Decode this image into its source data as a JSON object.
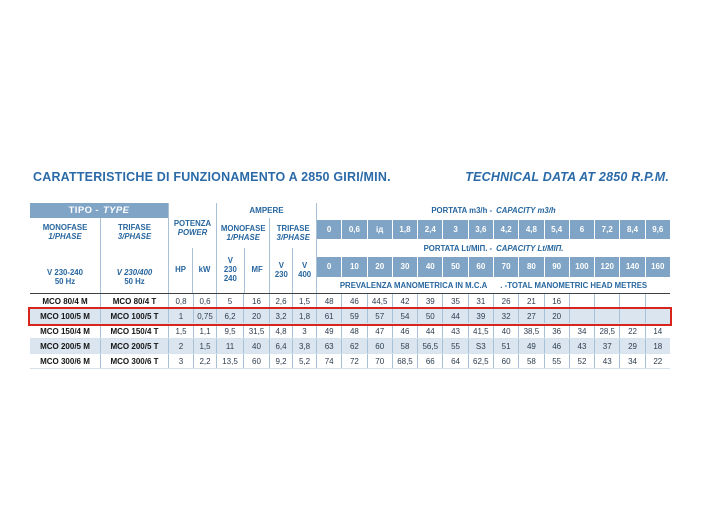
{
  "titles": {
    "left": "CARATTERISTICHE DI FUNZIONAMENTO A 2850 GIRI/MIN.",
    "right": "TECHNICAL DATA AT 2850 R.P.M."
  },
  "colors": {
    "band_blue": "#7FA4C5",
    "row_shade": "#DAE5F0",
    "header_text": "#27669E",
    "title_text": "#2A6AA8",
    "highlight_red": "#D7241D"
  },
  "table": {
    "tipo": {
      "it": "TIPO -",
      "en": "TYPE"
    },
    "monofase_col": {
      "line1": "MONOFASE",
      "line2": "1/PHASE",
      "volt": "V 230-240",
      "hz": "50 Hz"
    },
    "trifase_col": {
      "line1": "TRIFASE",
      "line2": "3/PHASE",
      "volt": "V 230/400",
      "hz": "50 Hz"
    },
    "potenza": {
      "line1": "POTENZA",
      "line2": "POWER",
      "hp": "HP",
      "kw": "kW"
    },
    "ampere": {
      "label": "AMPERE",
      "monofase_line1": "MONOFASE",
      "monofase_line2": "1/PHASE",
      "trifase_line1": "TRIFASE",
      "trifase_line2": "3/PHASE",
      "v230_240": [
        "V",
        "230",
        "240"
      ],
      "mf": "MF",
      "v230": [
        "V",
        "230"
      ],
      "v400": [
        "V",
        "400"
      ]
    },
    "capacity_m3h": {
      "label_it": "PORTATA m3/h -",
      "label_en": "CAPACITY m3/h",
      "values": [
        "0",
        "0,6",
        "ід",
        "1,8",
        "2,4",
        "3",
        "3,6",
        "4,2",
        "4,8",
        "5,4",
        "6",
        "7,2",
        "8,4",
        "9,6"
      ]
    },
    "capacity_ltmin": {
      "label_it": "PORTATA Lt/MIП. -",
      "label_en": "CAPACITY Lt/MIП.",
      "values": [
        "0",
        "10",
        "20",
        "30",
        "40",
        "50",
        "60",
        "70",
        "80",
        "90",
        "100",
        "120",
        "140",
        "160"
      ]
    },
    "head_label": {
      "it": "PREVALENZA MANOMETRICA IN M.C.A",
      "en": ". -TOTAL MANOMETRIC HEAD METRES"
    },
    "rows": [
      {
        "monofase": "MCO 80/4 M",
        "trifase": "MCO 80/4 T",
        "hp": "0,8",
        "kw": "0,6",
        "a_v230_240": "5",
        "a_mf": "16",
        "a_v230": "2,6",
        "a_v400": "1,5",
        "head": [
          "48",
          "46",
          "44,5",
          "42",
          "39",
          "35",
          "31",
          "26",
          "21",
          "16",
          "",
          "",
          "",
          ""
        ],
        "highlight": false
      },
      {
        "monofase": "MCO 100/5 M",
        "trifase": "MCO 100/5 T",
        "hp": "1",
        "kw": "0,75",
        "a_v230_240": "6,2",
        "a_mf": "20",
        "a_v230": "3,2",
        "a_v400": "1,8",
        "head": [
          "61",
          "59",
          "57",
          "54",
          "50",
          "44",
          "39",
          "32",
          "27",
          "20",
          "",
          "",
          "",
          ""
        ],
        "highlight": true
      },
      {
        "monofase": "MCO 150/4 M",
        "trifase": "MCO 150/4 T",
        "hp": "1,5",
        "kw": "1,1",
        "a_v230_240": "9,5",
        "a_mf": "31,5",
        "a_v230": "4,8",
        "a_v400": "3",
        "head": [
          "49",
          "48",
          "47",
          "46",
          "44",
          "43",
          "41,5",
          "40",
          "38,5",
          "36",
          "34",
          "28,5",
          "22",
          "14"
        ],
        "highlight": false
      },
      {
        "monofase": "MCO 200/5 M",
        "trifase": "MCO 200/5 T",
        "hp": "2",
        "kw": "1,5",
        "a_v230_240": "11",
        "a_mf": "40",
        "a_v230": "6,4",
        "a_v400": "3,8",
        "head": [
          "63",
          "62",
          "60",
          "58",
          "56,5",
          "55",
          "S3",
          "51",
          "49",
          "46",
          "43",
          "37",
          "29",
          "18"
        ],
        "highlight": false
      },
      {
        "monofase": "MCO 300/6 M",
        "trifase": "MCO 300/6 T",
        "hp": "3",
        "kw": "2,2",
        "a_v230_240": "13,5",
        "a_mf": "60",
        "a_v230": "9,2",
        "a_v400": "5,2",
        "head": [
          "74",
          "72",
          "70",
          "68,5",
          "66",
          "64",
          "62,5",
          "60",
          "58",
          "55",
          "52",
          "43",
          "34",
          "22"
        ],
        "highlight": false
      }
    ]
  }
}
